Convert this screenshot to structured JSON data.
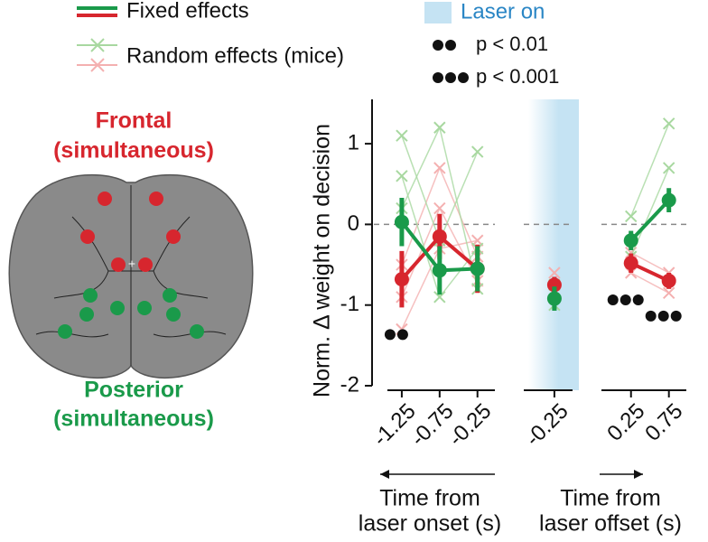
{
  "legend": {
    "fixed": {
      "label": "Fixed effects",
      "colors": [
        "#1a9a4a",
        "#d7262e"
      ]
    },
    "random": {
      "label": "Random effects (mice)",
      "colors": [
        "#a8d8a0",
        "#f4b0b0"
      ]
    },
    "laser": {
      "label": "Laser on",
      "color": "#c5e3f3",
      "text_color": "#2a86c5"
    },
    "significance": [
      {
        "dots": 2,
        "label": "p < 0.01"
      },
      {
        "dots": 3,
        "label": "p < 0.001"
      }
    ]
  },
  "brain": {
    "regions": [
      {
        "lines": [
          "Frontal",
          "(simultaneous)"
        ],
        "color": "#d7262e"
      },
      {
        "lines": [
          "Posterior",
          "(simultaneous)"
        ],
        "color": "#1a9a4a"
      }
    ]
  },
  "chart_data": {
    "type": "line",
    "ylabel": "Norm. Δ weight on decision",
    "ylim": [
      -2,
      1.55
    ],
    "yticks": [
      -2,
      -1,
      0,
      1
    ],
    "reference_line": 0,
    "panels": [
      {
        "x": [
          -1.25,
          -0.75,
          -0.25
        ],
        "xlim": [
          -1.44,
          -0.02
        ],
        "xticks": [
          -1.25,
          -0.75,
          -0.25
        ],
        "xlabel": [
          "Time from",
          "laser onset (s)"
        ],
        "arrow": "left",
        "series": [
          {
            "color": "#d7262e",
            "values": [
              -0.68,
              -0.15,
              -0.55
            ],
            "errors": [
              0.35,
              0.28,
              0.3
            ]
          },
          {
            "color": "#1a9a4a",
            "values": [
              0.03,
              -0.57,
              -0.55
            ],
            "errors": [
              0.3,
              0.3,
              0.28
            ]
          }
        ],
        "random": [
          {
            "color": "#f4b0b0",
            "values": [
              -1.3,
              -0.3,
              -0.2
            ]
          },
          {
            "color": "#f4b0b0",
            "values": [
              -0.5,
              0.7,
              -0.4
            ]
          },
          {
            "color": "#f4b0b0",
            "values": [
              -0.9,
              0.2,
              -0.7
            ]
          },
          {
            "color": "#a8d8a0",
            "values": [
              1.1,
              -0.2,
              0.9
            ]
          },
          {
            "color": "#a8d8a0",
            "values": [
              0.6,
              -0.9,
              -0.3
            ]
          },
          {
            "color": "#a8d8a0",
            "values": [
              0.2,
              1.2,
              -0.8
            ]
          }
        ],
        "significance": [
          2,
          null,
          null
        ]
      },
      {
        "x": [
          -0.25
        ],
        "xlim": [
          -0.655,
          -0.01
        ],
        "xticks": [
          -0.25
        ],
        "shade": true,
        "series": [
          {
            "color": "#d7262e",
            "values": [
              -0.75
            ],
            "errors": [
              0.1
            ]
          },
          {
            "color": "#1a9a4a",
            "values": [
              -0.92
            ],
            "errors": [
              0.15
            ]
          }
        ],
        "random": [
          {
            "color": "#f4b0b0",
            "values": [
              -0.6
            ]
          },
          {
            "color": "#f4b0b0",
            "values": [
              -0.85
            ]
          },
          {
            "color": "#a8d8a0",
            "values": [
              -0.75
            ]
          },
          {
            "color": "#a8d8a0",
            "values": [
              -1.0
            ]
          }
        ],
        "significance": [
          null
        ]
      },
      {
        "x": [
          0.25,
          0.75
        ],
        "xlim": [
          -0.14,
          0.98
        ],
        "xticks": [
          0.25,
          0.75
        ],
        "xlabel": [
          "Time from",
          "laser offset (s)"
        ],
        "arrow": "right",
        "series": [
          {
            "color": "#d7262e",
            "values": [
              -0.48,
              -0.7
            ],
            "errors": [
              0.12,
              0.1
            ]
          },
          {
            "color": "#1a9a4a",
            "values": [
              -0.2,
              0.3
            ],
            "errors": [
              0.12,
              0.15
            ]
          }
        ],
        "random": [
          {
            "color": "#f4b0b0",
            "values": [
              -0.35,
              -0.6
            ]
          },
          {
            "color": "#f4b0b0",
            "values": [
              -0.6,
              -0.85
            ]
          },
          {
            "color": "#a8d8a0",
            "values": [
              0.1,
              1.25
            ]
          },
          {
            "color": "#a8d8a0",
            "values": [
              -0.4,
              0.7
            ]
          }
        ],
        "significance": [
          3,
          3
        ]
      }
    ]
  }
}
